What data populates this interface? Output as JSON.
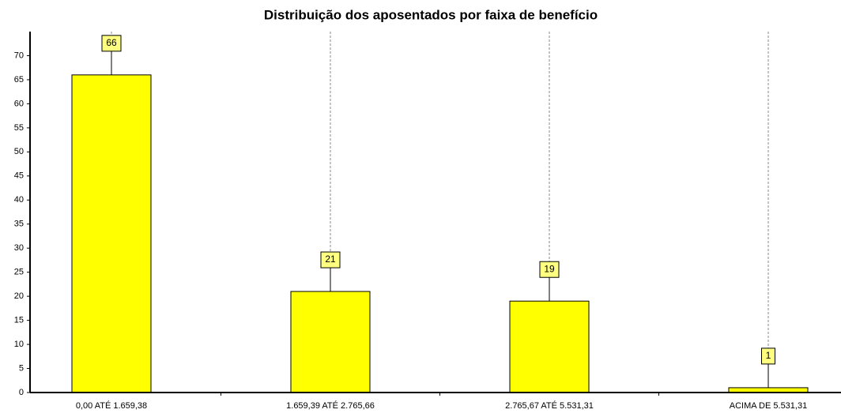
{
  "chart_data": {
    "type": "bar",
    "title": "Distribuição dos aposentados por faixa de benefício",
    "categories": [
      "0,00 ATÉ 1.659,38",
      "1.659,39 ATÉ 2.765,66",
      "2.765,67 ATÉ 5.531,31",
      "ACIMA DE 5.531,31"
    ],
    "values": [
      66,
      21,
      19,
      1
    ],
    "color": "#ffff00",
    "ylim": [
      0,
      75
    ],
    "yticks": [
      0,
      5,
      10,
      15,
      20,
      25,
      30,
      35,
      40,
      45,
      50,
      55,
      60,
      65,
      70
    ],
    "grid": true
  }
}
